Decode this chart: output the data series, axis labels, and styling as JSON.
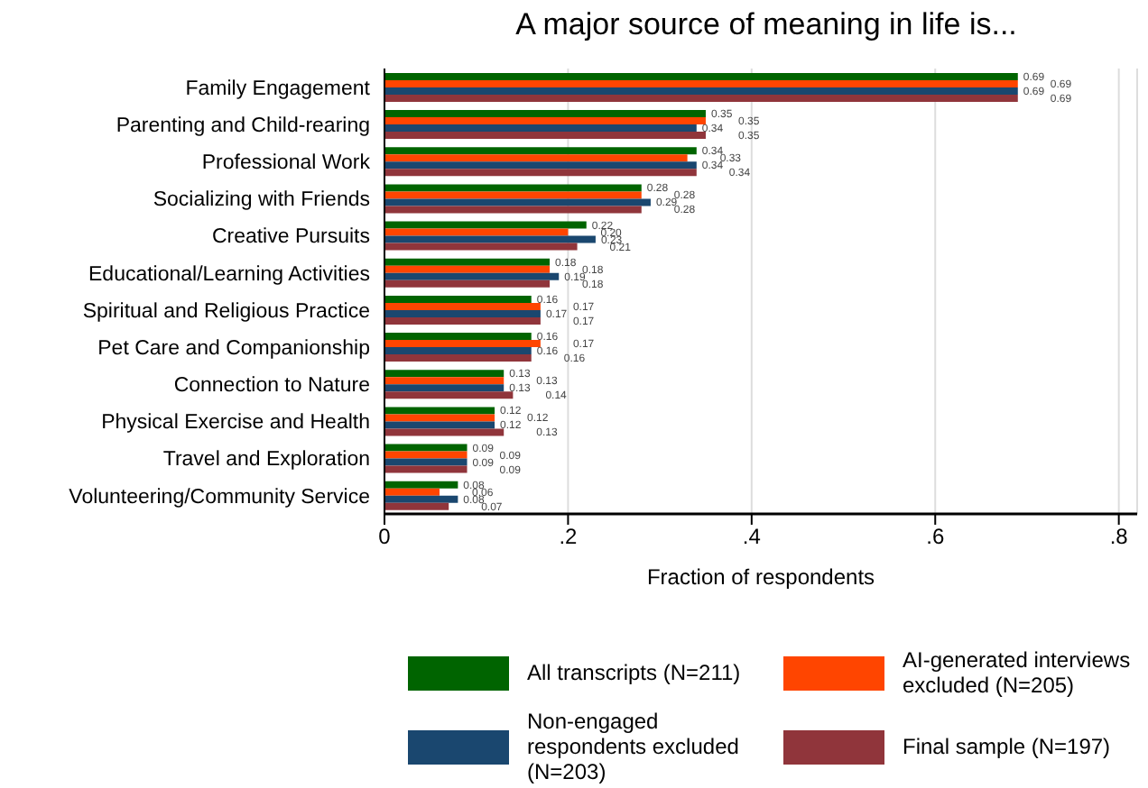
{
  "chart_data": {
    "type": "bar",
    "orientation": "horizontal",
    "title": "A major source of meaning in life is...",
    "xlabel": "Fraction of respondents",
    "categories": [
      "Family Engagement",
      "Parenting and Child-rearing",
      "Professional Work",
      "Socializing with Friends",
      "Creative Pursuits",
      "Educational/Learning Activities",
      "Spiritual and Religious Practice",
      "Pet Care and Companionship",
      "Connection to Nature",
      "Physical Exercise and Health",
      "Travel and Exploration",
      "Volunteering/Community Service"
    ],
    "series": [
      {
        "name": "All transcripts (N=211)",
        "color": "#006400",
        "values": [
          0.69,
          0.35,
          0.34,
          0.28,
          0.22,
          0.18,
          0.16,
          0.16,
          0.13,
          0.12,
          0.09,
          0.08
        ],
        "value_labels": [
          "0.69",
          "0.35",
          "0.34",
          "0.28",
          "0.22",
          "0.18",
          "0.16",
          "0.16",
          "0.13",
          "0.12",
          "0.09",
          "0.08"
        ]
      },
      {
        "name": "AI-generated interviews excluded (N=205)",
        "color": "#ff4500",
        "values": [
          0.69,
          0.35,
          0.33,
          0.28,
          0.2,
          0.18,
          0.17,
          0.17,
          0.13,
          0.12,
          0.09,
          0.06
        ],
        "value_labels": [
          "0.69",
          "0.35",
          "0.33",
          "0.28",
          "0.20",
          "0.18",
          "0.17",
          "0.17",
          "0.13",
          "0.12",
          "0.09",
          "0.06"
        ]
      },
      {
        "name": "Non-engaged respondents excluded (N=203)",
        "color": "#1a476f",
        "values": [
          0.69,
          0.34,
          0.34,
          0.29,
          0.23,
          0.19,
          0.17,
          0.16,
          0.13,
          0.12,
          0.09,
          0.08
        ],
        "value_labels": [
          "0.69",
          "0.34",
          "0.34",
          "0.29",
          "0.23",
          "0.19",
          "0.17",
          "0.16",
          "0.13",
          "0.12",
          "0.09",
          "0.08"
        ]
      },
      {
        "name": "Final sample (N=197)",
        "color": "#90353b",
        "values": [
          0.69,
          0.35,
          0.34,
          0.28,
          0.21,
          0.18,
          0.17,
          0.16,
          0.14,
          0.13,
          0.09,
          0.07
        ],
        "value_labels": [
          "0.69",
          "0.35",
          "0.34",
          "0.28",
          "0.21",
          "0.18",
          "0.17",
          "0.16",
          "0.14",
          "0.13",
          "0.09",
          "0.07"
        ]
      }
    ],
    "xlim": [
      0,
      0.82
    ],
    "xticks": [
      0,
      {
        "value": 0.2,
        "label": ".2"
      },
      {
        "value": 0.4,
        "label": ".4"
      },
      {
        "value": 0.6,
        "label": ".6"
      },
      {
        "value": 0.8,
        "label": ".8"
      }
    ],
    "grid": "x",
    "legend": "bottom"
  }
}
